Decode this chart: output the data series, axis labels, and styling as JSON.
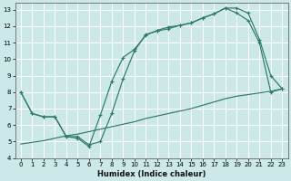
{
  "xlabel": "Humidex (Indice chaleur)",
  "bg_color": "#cde8e8",
  "grid_color": "#b8d8d8",
  "line_color": "#2d7a6a",
  "xlim": [
    -0.5,
    23.5
  ],
  "ylim": [
    4,
    13.4
  ],
  "xticks": [
    0,
    1,
    2,
    3,
    4,
    5,
    6,
    7,
    8,
    9,
    10,
    11,
    12,
    13,
    14,
    15,
    16,
    17,
    18,
    19,
    20,
    21,
    22,
    23
  ],
  "yticks": [
    4,
    5,
    6,
    7,
    8,
    9,
    10,
    11,
    12,
    13
  ],
  "line1_x": [
    0,
    1,
    2,
    3,
    4,
    5,
    6,
    7,
    8,
    9,
    10,
    11,
    12,
    13,
    14,
    15,
    16,
    17,
    18,
    19,
    20,
    21,
    22,
    23
  ],
  "line1_y": [
    8.0,
    6.7,
    6.5,
    6.5,
    5.3,
    5.3,
    4.8,
    5.0,
    6.7,
    8.8,
    10.5,
    11.5,
    11.7,
    11.85,
    12.05,
    12.2,
    12.5,
    12.75,
    13.1,
    13.1,
    12.8,
    11.2,
    9.0,
    8.2
  ],
  "line2_x": [
    0,
    1,
    2,
    3,
    4,
    5,
    6,
    7,
    8,
    9,
    10,
    11,
    12,
    13,
    14,
    15,
    16,
    17,
    18,
    19,
    20,
    21,
    22,
    23
  ],
  "line2_y": [
    8.0,
    6.7,
    6.5,
    6.5,
    5.3,
    5.2,
    4.7,
    6.6,
    8.65,
    10.1,
    10.6,
    11.45,
    11.75,
    11.95,
    12.05,
    12.2,
    12.5,
    12.75,
    13.1,
    12.8,
    12.35,
    11.0,
    8.0,
    8.2
  ],
  "line3_x": [
    0,
    1,
    2,
    3,
    4,
    5,
    6,
    7,
    8,
    9,
    10,
    11,
    12,
    13,
    14,
    15,
    16,
    17,
    18,
    19,
    20,
    21,
    22,
    23
  ],
  "line3_y": [
    4.85,
    4.95,
    5.05,
    5.2,
    5.35,
    5.45,
    5.6,
    5.75,
    5.9,
    6.05,
    6.2,
    6.4,
    6.55,
    6.7,
    6.85,
    7.0,
    7.2,
    7.4,
    7.6,
    7.75,
    7.85,
    7.95,
    8.05,
    8.2
  ]
}
